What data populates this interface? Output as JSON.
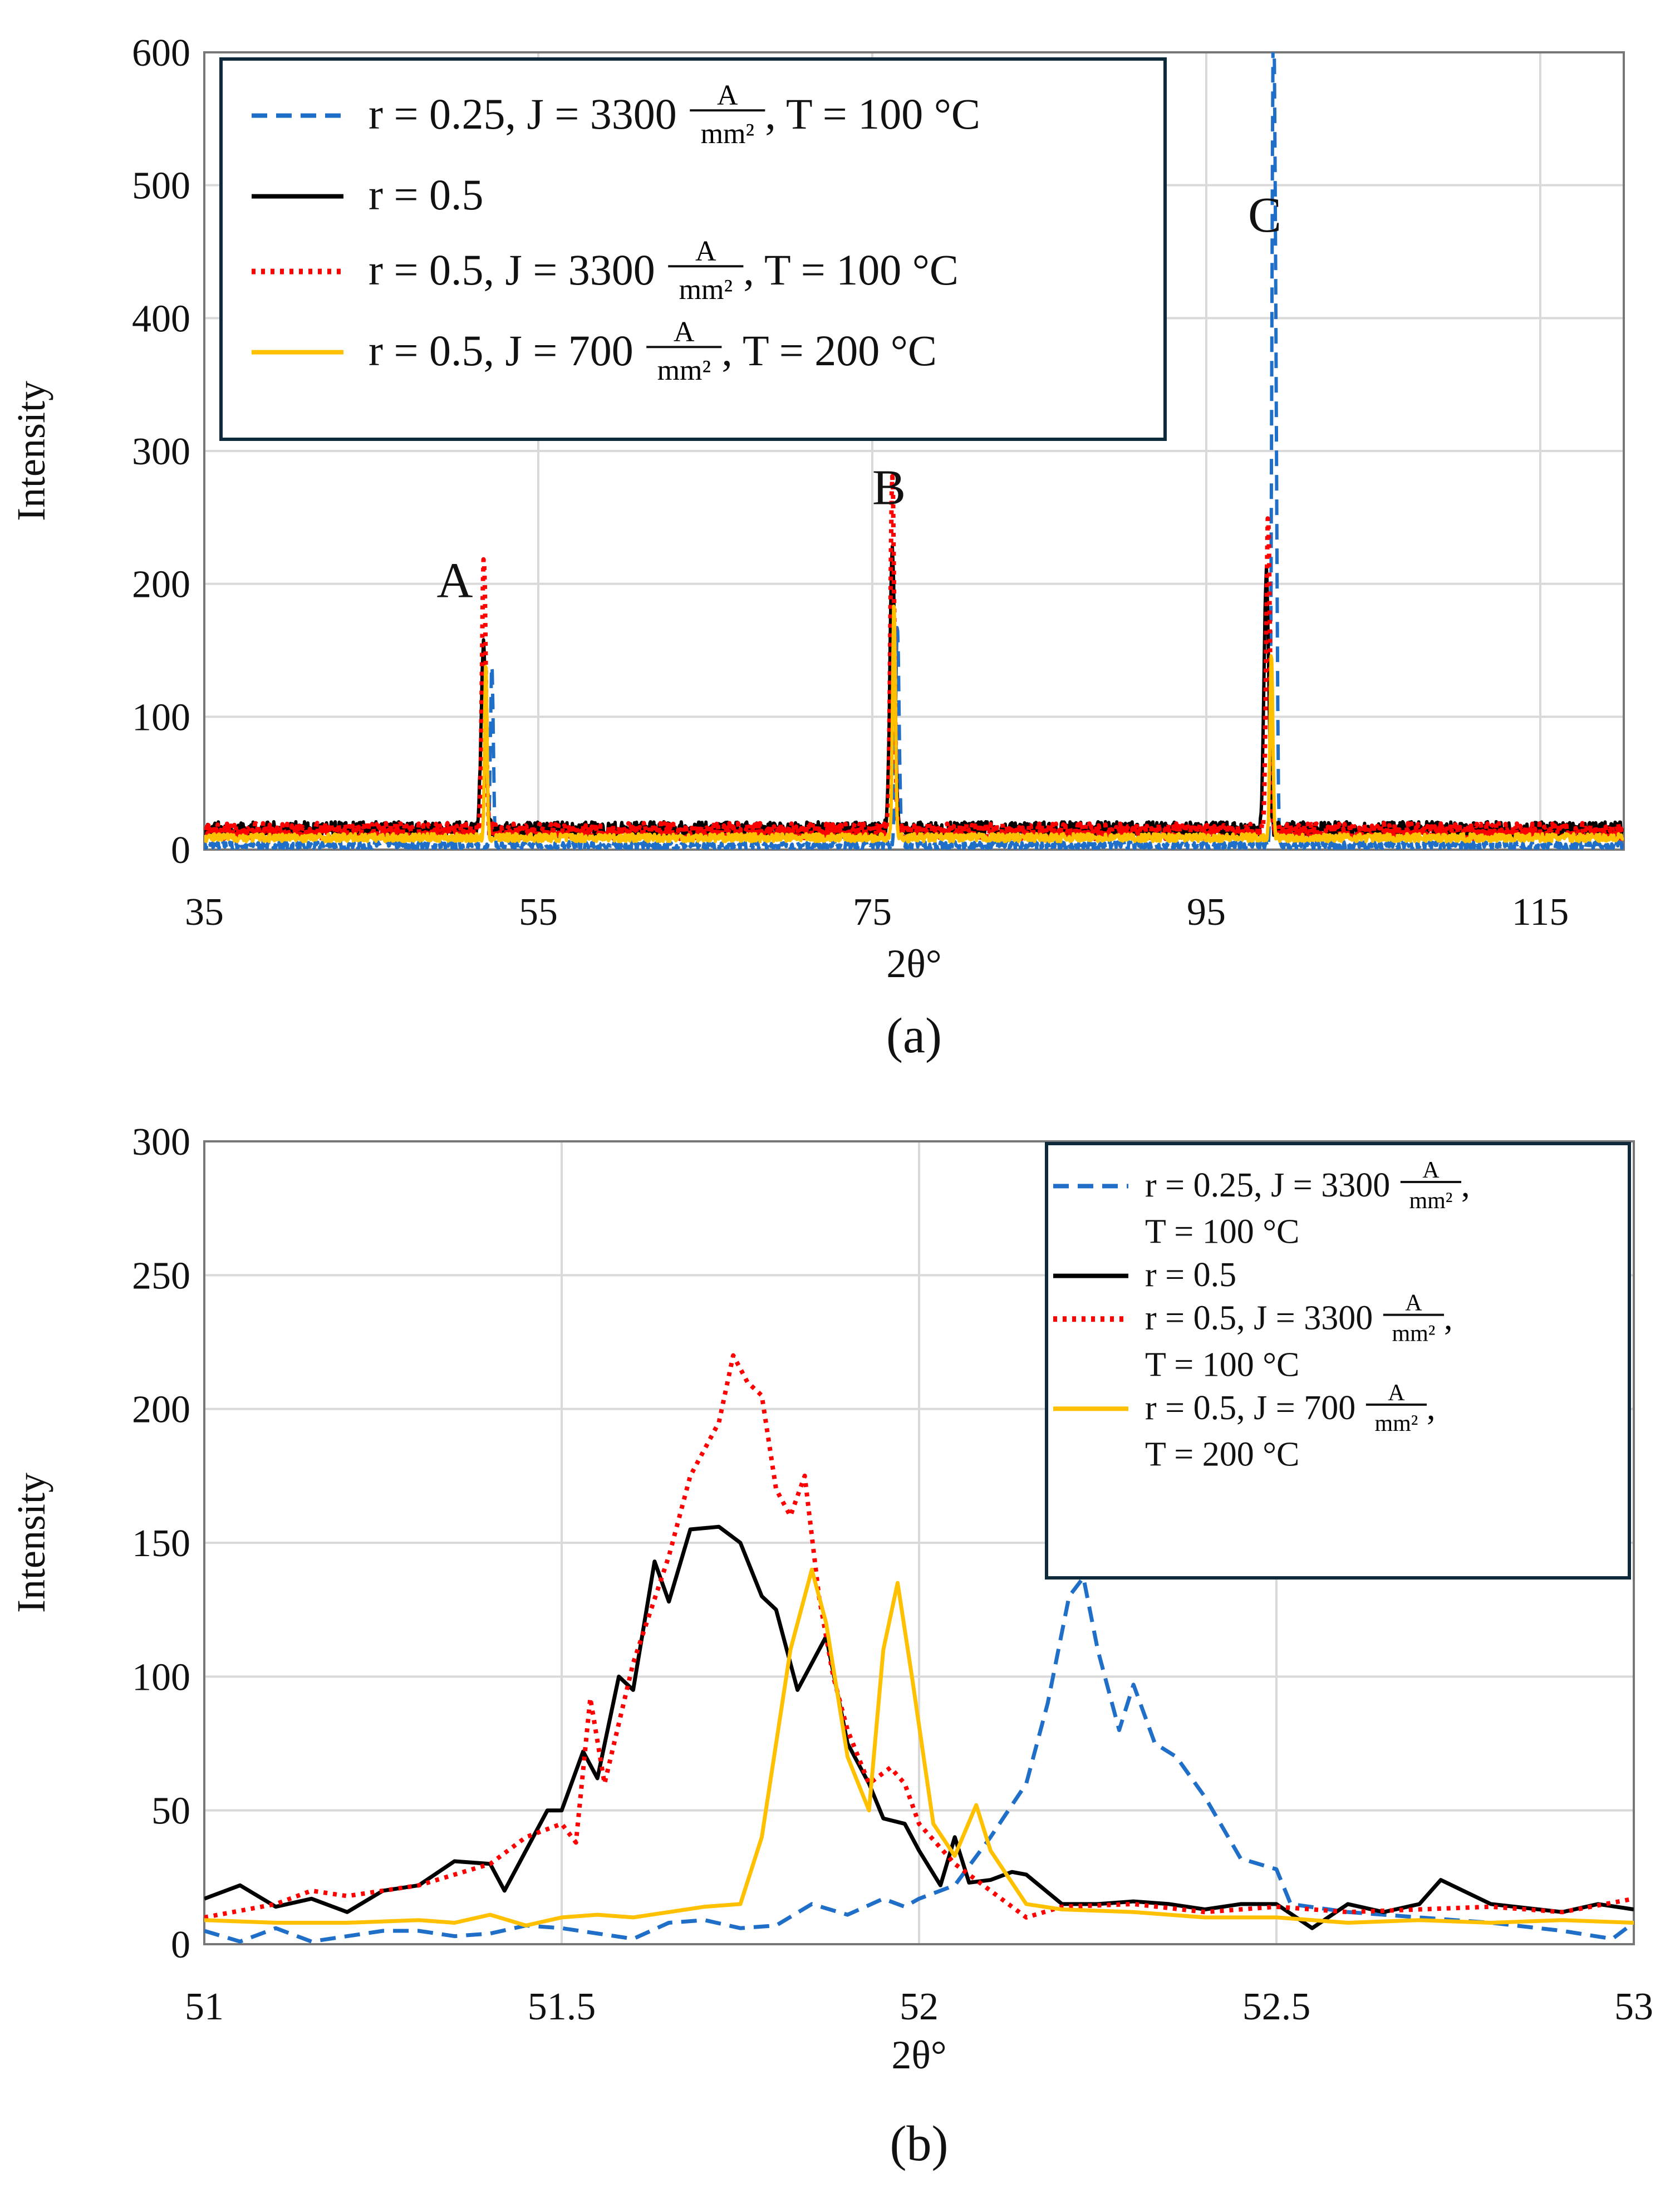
{
  "chart_data": [
    {
      "type": "line",
      "caption": "(a)",
      "xlabel": "2θ°",
      "ylabel": "Intensity",
      "xlim": [
        35,
        120
      ],
      "ylim": [
        0,
        600
      ],
      "xticks": [
        "35",
        "55",
        "75",
        "95",
        "115"
      ],
      "xtick_values": [
        35,
        55,
        75,
        95,
        115
      ],
      "yticks": [
        "0",
        "100",
        "200",
        "300",
        "400",
        "500",
        "600"
      ],
      "ytick_values": [
        0,
        100,
        200,
        300,
        400,
        500,
        600
      ],
      "grid": true,
      "legend_position": "top-left",
      "annotations": [
        {
          "text": "A",
          "x": 50,
          "y": 190
        },
        {
          "text": "B",
          "x": 76,
          "y": 260
        },
        {
          "text": "C",
          "x": 98.5,
          "y": 465
        }
      ],
      "series": [
        {
          "name": "r = 0.25, J = 3300 A/mm², T = 100 °C",
          "label_main": "r = 0.25, J = 3300",
          "label_tail": ", T = 100 °C",
          "color": "#1f6fc9",
          "dash": "dashed",
          "baseline": 3,
          "noise": 3,
          "peaks": [
            [
              52.22,
              137,
              0.12
            ],
            [
              76.5,
              165,
              0.15
            ],
            [
              99.0,
              545,
              0.12
            ],
            [
              99.15,
              330,
              0.12
            ]
          ]
        },
        {
          "name": "r = 0.5",
          "label_main": "r = 0.5",
          "label_tail": "",
          "color": "#000000",
          "dash": "solid",
          "baseline": 15,
          "noise": 6,
          "peaks": [
            [
              51.72,
              142,
              0.2
            ],
            [
              76.2,
              212,
              0.2
            ],
            [
              98.6,
              192,
              0.2
            ]
          ]
        },
        {
          "name": "r = 0.5, J = 3300 A/mm², T = 100 °C",
          "label_main": "r = 0.5, J = 3300",
          "label_tail": ", T = 100 °C",
          "color": "#ff0000",
          "dash": "dotted",
          "baseline": 14,
          "noise": 6,
          "peaks": [
            [
              51.74,
              206,
              0.16
            ],
            [
              76.2,
              271,
              0.16
            ],
            [
              98.7,
              234,
              0.16
            ]
          ]
        },
        {
          "name": "r = 0.5, J = 700 A/mm², T = 200 °C",
          "label_main": "r = 0.5, J = 700",
          "label_tail": ", T = 200 °C",
          "color": "#ffc000",
          "dash": "solid",
          "baseline": 9,
          "noise": 3,
          "peaks": [
            [
              51.86,
              131,
              0.1
            ],
            [
              76.3,
              176,
              0.12
            ],
            [
              98.9,
              141,
              0.12
            ]
          ]
        }
      ]
    },
    {
      "type": "line",
      "caption": "(b)",
      "xlabel": "2θ°",
      "ylabel": "Intensity",
      "xlim": [
        51,
        53
      ],
      "ylim": [
        0,
        300
      ],
      "xticks": [
        "51",
        "51.5",
        "52",
        "52.5",
        "53"
      ],
      "xtick_values": [
        51,
        51.5,
        52,
        52.5,
        53
      ],
      "yticks": [
        "0",
        "50",
        "100",
        "150",
        "200",
        "250",
        "300"
      ],
      "ytick_values": [
        0,
        50,
        100,
        150,
        200,
        250,
        300
      ],
      "grid": true,
      "legend_position": "top-right",
      "series": [
        {
          "name": "r = 0.25, J = 3300 A/mm², T = 100 °C",
          "label_main": "r = 0.25, J = 3300",
          "label_line2": "T = 100 °C",
          "color": "#1f6fc9",
          "dash": "dashed",
          "points": [
            [
              51,
              5
            ],
            [
              51.05,
              1
            ],
            [
              51.1,
              6
            ],
            [
              51.15,
              1
            ],
            [
              51.2,
              3
            ],
            [
              51.25,
              5
            ],
            [
              51.3,
              5
            ],
            [
              51.35,
              3
            ],
            [
              51.4,
              4
            ],
            [
              51.45,
              7
            ],
            [
              51.5,
              6
            ],
            [
              51.55,
              4
            ],
            [
              51.6,
              2
            ],
            [
              51.65,
              8
            ],
            [
              51.7,
              9
            ],
            [
              51.75,
              6
            ],
            [
              51.8,
              7
            ],
            [
              51.85,
              15
            ],
            [
              51.9,
              11
            ],
            [
              51.95,
              17
            ],
            [
              51.98,
              14
            ],
            [
              52.0,
              17
            ],
            [
              52.05,
              22
            ],
            [
              52.1,
              40
            ],
            [
              52.15,
              60
            ],
            [
              52.18,
              90
            ],
            [
              52.21,
              130
            ],
            [
              52.23,
              137
            ],
            [
              52.25,
              110
            ],
            [
              52.28,
              80
            ],
            [
              52.3,
              97
            ],
            [
              52.33,
              75
            ],
            [
              52.36,
              70
            ],
            [
              52.4,
              55
            ],
            [
              52.45,
              32
            ],
            [
              52.5,
              28
            ],
            [
              52.52,
              15
            ],
            [
              52.6,
              12
            ],
            [
              52.7,
              10
            ],
            [
              52.8,
              8
            ],
            [
              52.9,
              5
            ],
            [
              52.97,
              2
            ],
            [
              53,
              8
            ]
          ]
        },
        {
          "name": "r = 0.5",
          "label_main": "r = 0.5",
          "label_line2": "",
          "color": "#000000",
          "dash": "solid",
          "points": [
            [
              51,
              17
            ],
            [
              51.05,
              22
            ],
            [
              51.1,
              14
            ],
            [
              51.15,
              17
            ],
            [
              51.2,
              12
            ],
            [
              51.25,
              20
            ],
            [
              51.3,
              22
            ],
            [
              51.35,
              31
            ],
            [
              51.4,
              30
            ],
            [
              51.42,
              20
            ],
            [
              51.45,
              35
            ],
            [
              51.48,
              50
            ],
            [
              51.5,
              50
            ],
            [
              51.53,
              72
            ],
            [
              51.55,
              62
            ],
            [
              51.58,
              100
            ],
            [
              51.6,
              95
            ],
            [
              51.63,
              143
            ],
            [
              51.65,
              128
            ],
            [
              51.68,
              155
            ],
            [
              51.72,
              156
            ],
            [
              51.75,
              150
            ],
            [
              51.78,
              130
            ],
            [
              51.8,
              125
            ],
            [
              51.83,
              95
            ],
            [
              51.87,
              115
            ],
            [
              51.9,
              75
            ],
            [
              51.93,
              60
            ],
            [
              51.95,
              47
            ],
            [
              51.98,
              45
            ],
            [
              52.0,
              35
            ],
            [
              52.03,
              22
            ],
            [
              52.05,
              40
            ],
            [
              52.07,
              23
            ],
            [
              52.1,
              24
            ],
            [
              52.13,
              27
            ],
            [
              52.15,
              26
            ],
            [
              52.2,
              15
            ],
            [
              52.25,
              15
            ],
            [
              52.3,
              16
            ],
            [
              52.35,
              15
            ],
            [
              52.4,
              13
            ],
            [
              52.45,
              15
            ],
            [
              52.5,
              15
            ],
            [
              52.55,
              6
            ],
            [
              52.6,
              15
            ],
            [
              52.65,
              12
            ],
            [
              52.7,
              15
            ],
            [
              52.73,
              24
            ],
            [
              52.8,
              15
            ],
            [
              52.9,
              12
            ],
            [
              52.95,
              15
            ],
            [
              53,
              13
            ]
          ]
        },
        {
          "name": "r = 0.5, J = 3300 A/mm², T = 100 °C",
          "label_main": "r = 0.5, J = 3300",
          "label_line2": "T = 100 °C",
          "color": "#ff0000",
          "dash": "dotted",
          "points": [
            [
              51,
              10
            ],
            [
              51.1,
              15
            ],
            [
              51.15,
              20
            ],
            [
              51.2,
              18
            ],
            [
              51.3,
              22
            ],
            [
              51.4,
              30
            ],
            [
              51.45,
              40
            ],
            [
              51.5,
              45
            ],
            [
              51.52,
              38
            ],
            [
              51.54,
              92
            ],
            [
              51.56,
              60
            ],
            [
              51.6,
              105
            ],
            [
              51.65,
              145
            ],
            [
              51.68,
              175
            ],
            [
              51.72,
              195
            ],
            [
              51.74,
              220
            ],
            [
              51.76,
              210
            ],
            [
              51.78,
              205
            ],
            [
              51.8,
              170
            ],
            [
              51.82,
              160
            ],
            [
              51.84,
              175
            ],
            [
              51.86,
              130
            ],
            [
              51.88,
              100
            ],
            [
              51.9,
              80
            ],
            [
              51.93,
              60
            ],
            [
              51.96,
              66
            ],
            [
              51.98,
              60
            ],
            [
              52.0,
              45
            ],
            [
              52.05,
              30
            ],
            [
              52.1,
              20
            ],
            [
              52.15,
              10
            ],
            [
              52.2,
              14
            ],
            [
              52.3,
              15
            ],
            [
              52.4,
              12
            ],
            [
              52.5,
              14
            ],
            [
              52.6,
              12
            ],
            [
              52.7,
              13
            ],
            [
              52.8,
              14
            ],
            [
              52.9,
              12
            ],
            [
              53,
              17
            ]
          ]
        },
        {
          "name": "r = 0.5, J = 700 A/mm², T = 200 °C",
          "label_main": "r = 0.5, J = 700",
          "label_line2": "T = 200 °C",
          "color": "#ffc000",
          "dash": "solid",
          "points": [
            [
              51,
              9
            ],
            [
              51.1,
              8
            ],
            [
              51.2,
              8
            ],
            [
              51.3,
              9
            ],
            [
              51.35,
              8
            ],
            [
              51.4,
              11
            ],
            [
              51.45,
              7
            ],
            [
              51.5,
              10
            ],
            [
              51.55,
              11
            ],
            [
              51.6,
              10
            ],
            [
              51.7,
              14
            ],
            [
              51.75,
              15
            ],
            [
              51.78,
              40
            ],
            [
              51.82,
              110
            ],
            [
              51.85,
              140
            ],
            [
              51.87,
              120
            ],
            [
              51.9,
              70
            ],
            [
              51.93,
              50
            ],
            [
              51.95,
              110
            ],
            [
              51.97,
              135
            ],
            [
              51.99,
              100
            ],
            [
              52.02,
              45
            ],
            [
              52.05,
              33
            ],
            [
              52.08,
              52
            ],
            [
              52.1,
              35
            ],
            [
              52.15,
              15
            ],
            [
              52.2,
              13
            ],
            [
              52.3,
              12
            ],
            [
              52.4,
              10
            ],
            [
              52.5,
              10
            ],
            [
              52.6,
              8
            ],
            [
              52.7,
              9
            ],
            [
              52.8,
              8
            ],
            [
              52.9,
              9
            ],
            [
              53,
              8
            ]
          ]
        }
      ]
    }
  ],
  "units": {
    "num": "A",
    "den": "mm²"
  }
}
